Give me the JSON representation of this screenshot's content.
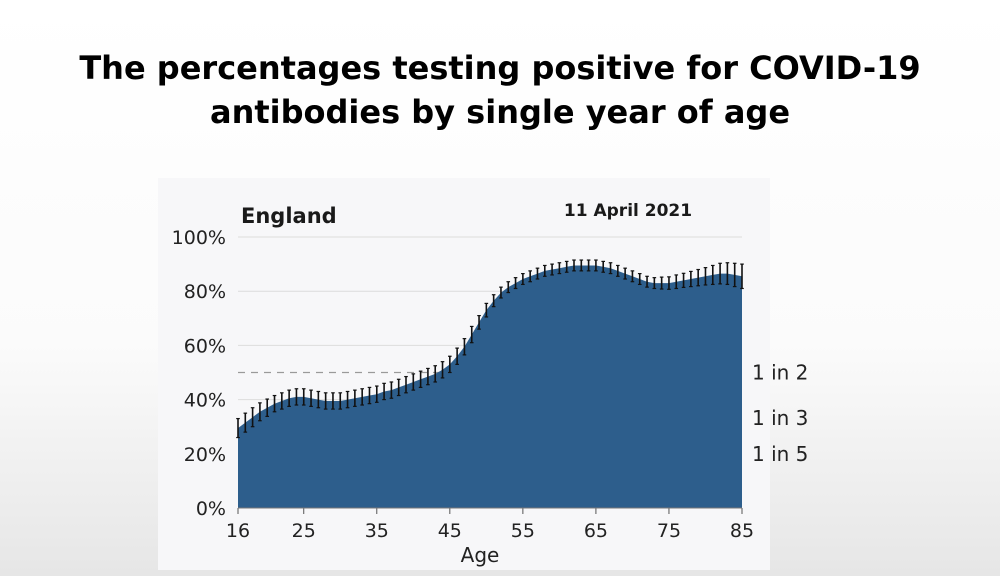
{
  "slide": {
    "title_line1": "The percentages testing positive for COVID-19",
    "title_line2": "antibodies by single year of age"
  },
  "chart_data": {
    "type": "area",
    "region_label": "England",
    "date_label": "11 April 2021",
    "xlabel": "Age",
    "ylabel": "",
    "xlim": [
      16,
      85
    ],
    "ylim": [
      0,
      100
    ],
    "x_ticks": [
      16,
      25,
      35,
      45,
      55,
      65,
      75,
      85
    ],
    "y_ticks": [
      0,
      20,
      40,
      60,
      80,
      100
    ],
    "y_tick_labels": [
      "0%",
      "20%",
      "40%",
      "60%",
      "80%",
      "100%"
    ],
    "reference_labels": [
      {
        "text": "1 in 2",
        "value": 50
      },
      {
        "text": "1 in 3",
        "value": 33.3
      },
      {
        "text": "1 in 5",
        "value": 20
      }
    ],
    "reference_line": 50,
    "grid": true,
    "colors": {
      "area": "#2d5e8c",
      "error_bar": "#111111",
      "grid": "#dcdcdc",
      "reference_line": "#9a9a9a"
    },
    "series": [
      {
        "x": [
          16,
          17,
          18,
          19,
          20,
          21,
          22,
          23,
          24,
          25,
          26,
          27,
          28,
          29,
          30,
          31,
          32,
          33,
          34,
          35,
          36,
          37,
          38,
          39,
          40,
          41,
          42,
          43,
          44,
          45,
          46,
          47,
          48,
          49,
          50,
          51,
          52,
          53,
          54,
          55,
          56,
          57,
          58,
          59,
          60,
          61,
          62,
          63,
          64,
          65,
          66,
          67,
          68,
          69,
          70,
          71,
          72,
          73,
          74,
          75,
          76,
          77,
          78,
          79,
          80,
          81,
          82,
          83,
          84,
          85
        ],
        "y": [
          29.5,
          31.5,
          33.5,
          35.5,
          37,
          38.5,
          39.5,
          40.5,
          41,
          41,
          40.5,
          40,
          39.5,
          39.5,
          39.5,
          40,
          40.5,
          41,
          41.5,
          42,
          43,
          43.5,
          44.5,
          45.5,
          46.5,
          47.5,
          48.5,
          49.5,
          51,
          53,
          56,
          59.5,
          64,
          68.5,
          73,
          76.5,
          79.5,
          81.5,
          83,
          84.5,
          85.5,
          86.5,
          87.5,
          88,
          88.5,
          89,
          89.5,
          89.5,
          89.5,
          89.5,
          89,
          88.5,
          87.5,
          86.5,
          85.5,
          84.5,
          83.5,
          83,
          83,
          83,
          83.5,
          84,
          84.5,
          85,
          85.5,
          86,
          86.5,
          86.5,
          86,
          85.5
        ],
        "ci": [
          3.5,
          3.5,
          3.5,
          3.3,
          3.2,
          3,
          3,
          3,
          3,
          3,
          3,
          3,
          3,
          3,
          3,
          3,
          3,
          3,
          3,
          3,
          3,
          3,
          3,
          3,
          3,
          3,
          3,
          3,
          3,
          3,
          3,
          3,
          3,
          2.5,
          2.5,
          2.2,
          2,
          2,
          2,
          2,
          2,
          2,
          2,
          2,
          2,
          2,
          2,
          2,
          2,
          2,
          2,
          2,
          2,
          2,
          2,
          2,
          2,
          2,
          2.2,
          2.3,
          2.5,
          2.6,
          2.8,
          3,
          3.2,
          3.5,
          3.8,
          4,
          4.3,
          4.5
        ]
      }
    ]
  }
}
